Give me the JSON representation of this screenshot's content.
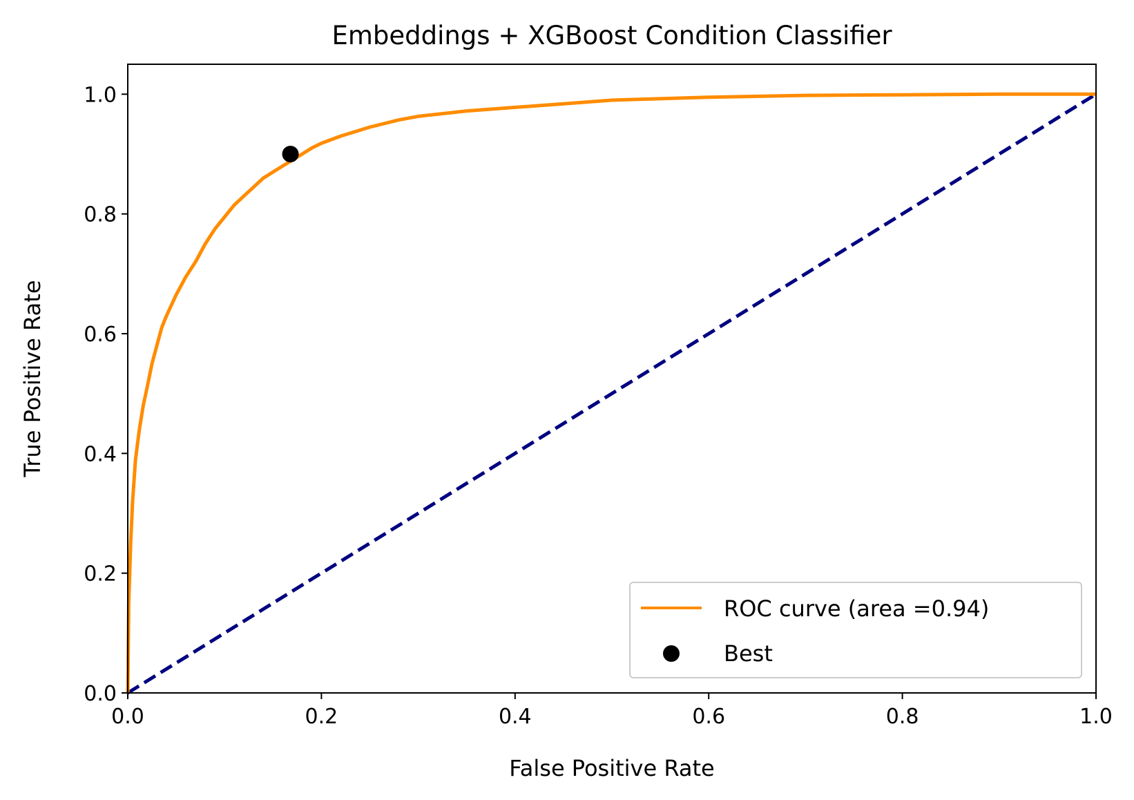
{
  "chart_data": {
    "type": "line",
    "title": "Embeddings + XGBoost Condition Classifier",
    "xlabel": "False Positive Rate",
    "ylabel": "True Positive Rate",
    "xlim": [
      0.0,
      1.0
    ],
    "ylim": [
      0.0,
      1.05
    ],
    "xticks": [
      "0.0",
      "0.2",
      "0.4",
      "0.6",
      "0.8",
      "1.0"
    ],
    "yticks": [
      "0.0",
      "0.2",
      "0.4",
      "0.6",
      "0.8",
      "1.0"
    ],
    "grid": false,
    "legend_position": "bottom-right",
    "series": [
      {
        "name": "ROC curve (area =0.94)",
        "kind": "line",
        "color": "#ff8c00",
        "x": [
          0.0,
          0.001,
          0.003,
          0.005,
          0.008,
          0.012,
          0.016,
          0.02,
          0.025,
          0.03,
          0.035,
          0.04,
          0.05,
          0.06,
          0.07,
          0.08,
          0.09,
          0.1,
          0.11,
          0.12,
          0.13,
          0.14,
          0.15,
          0.16,
          0.17,
          0.18,
          0.19,
          0.2,
          0.22,
          0.25,
          0.28,
          0.3,
          0.35,
          0.4,
          0.45,
          0.5,
          0.6,
          0.7,
          0.8,
          0.9,
          1.0
        ],
        "y": [
          0.0,
          0.15,
          0.25,
          0.32,
          0.39,
          0.44,
          0.48,
          0.51,
          0.55,
          0.58,
          0.61,
          0.63,
          0.665,
          0.695,
          0.72,
          0.75,
          0.775,
          0.795,
          0.815,
          0.83,
          0.845,
          0.86,
          0.87,
          0.88,
          0.89,
          0.9,
          0.91,
          0.918,
          0.93,
          0.945,
          0.957,
          0.963,
          0.972,
          0.978,
          0.984,
          0.99,
          0.995,
          0.998,
          0.999,
          1.0,
          1.0
        ]
      },
      {
        "name": "",
        "kind": "dashed-line",
        "color": "#000080",
        "x": [
          0.0,
          1.0
        ],
        "y": [
          0.0,
          1.0
        ]
      },
      {
        "name": "Best",
        "kind": "scatter",
        "color": "#000000",
        "x": [
          0.168
        ],
        "y": [
          0.9
        ]
      }
    ]
  }
}
